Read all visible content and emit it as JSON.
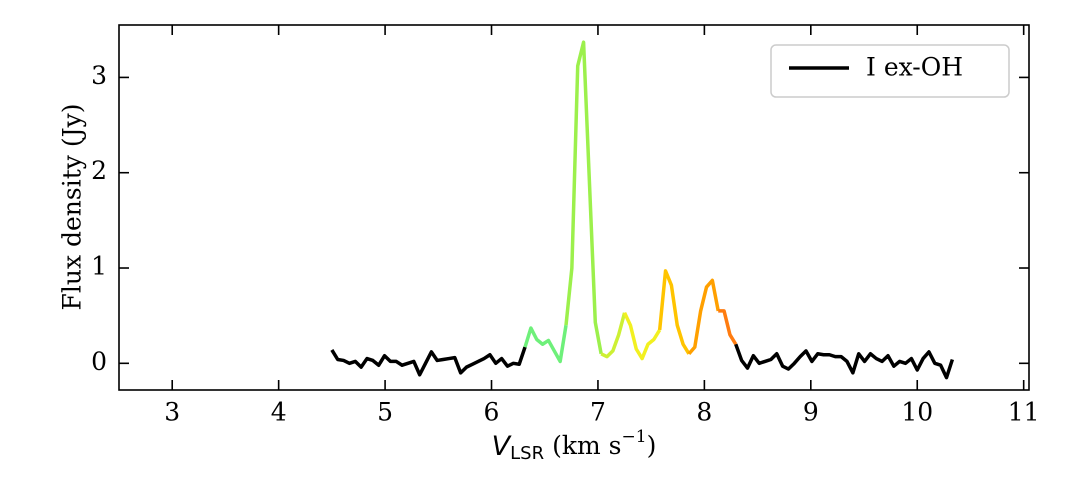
{
  "chart_data": {
    "type": "line",
    "ylabel": "Flux density (Jy)",
    "xlabel_parts": [
      "V",
      "LSR",
      "(km s",
      "−1",
      ")"
    ],
    "xlim": [
      2.5,
      11.05
    ],
    "xticks": [
      3,
      4,
      5,
      6,
      7,
      8,
      9,
      10,
      11
    ],
    "ylim": [
      -0.28,
      3.55
    ],
    "yticks": [
      0,
      1,
      2,
      3
    ],
    "legend": "upper right",
    "series": [
      {
        "name": "I ex-OH",
        "color": "#000000",
        "x": [
          4.5,
          4.555,
          4.61,
          4.665,
          4.72,
          4.775,
          4.83,
          4.885,
          4.94,
          4.995,
          5.05,
          5.105,
          5.16,
          5.215,
          5.27,
          5.325,
          5.38,
          5.435,
          5.49,
          5.545,
          5.6,
          5.655,
          5.71,
          5.765,
          5.82,
          5.875,
          5.93,
          5.985,
          6.04,
          6.095,
          6.15,
          6.205,
          6.26,
          6.315,
          6.37,
          6.425,
          6.48,
          6.535,
          6.59,
          6.645,
          6.7,
          6.755,
          6.81,
          6.865,
          6.92,
          6.975,
          7.03,
          7.085,
          7.14,
          7.195,
          7.25,
          7.305,
          7.36,
          7.415,
          7.47,
          7.525,
          7.58,
          7.635,
          7.69,
          7.745,
          7.8,
          7.855,
          7.91,
          7.965,
          8.02,
          8.075,
          8.13,
          8.185,
          8.24,
          8.295,
          8.35,
          8.405,
          8.46,
          8.515,
          8.57,
          8.625,
          8.68,
          8.735,
          8.79,
          8.845,
          8.9,
          8.955,
          9.01,
          9.065,
          9.12,
          9.175,
          9.23,
          9.285,
          9.34,
          9.395,
          9.45,
          9.505,
          9.56,
          9.615,
          9.67,
          9.725,
          9.78,
          9.835,
          9.89,
          9.945,
          10.0,
          10.055,
          10.11,
          10.165,
          10.22,
          10.275,
          10.33
        ],
        "values": [
          0.14,
          0.04,
          0.03,
          0.0,
          0.02,
          -0.04,
          0.05,
          0.03,
          -0.02,
          0.08,
          0.02,
          0.02,
          -0.02,
          0.0,
          0.02,
          -0.12,
          0.0,
          0.12,
          0.03,
          0.04,
          0.05,
          0.06,
          -0.1,
          -0.04,
          -0.01,
          0.02,
          0.05,
          0.09,
          0.0,
          0.05,
          -0.03,
          0.0,
          -0.01,
          0.17,
          0.37,
          0.25,
          0.2,
          0.24,
          0.13,
          0.02,
          0.4,
          1.0,
          3.12,
          3.37,
          1.9,
          0.43,
          0.1,
          0.07,
          0.13,
          0.3,
          0.53,
          0.4,
          0.15,
          0.05,
          0.2,
          0.25,
          0.35,
          0.97,
          0.82,
          0.4,
          0.2,
          0.1,
          0.17,
          0.55,
          0.8,
          0.87,
          0.55,
          0.55,
          0.3,
          0.2,
          0.03,
          -0.05,
          0.08,
          0.0,
          0.02,
          0.04,
          0.1,
          -0.03,
          -0.06,
          0.0,
          0.07,
          0.13,
          0.02,
          0.1,
          0.09,
          0.09,
          0.07,
          0.07,
          0.02,
          -0.1,
          0.1,
          0.02,
          0.1,
          0.05,
          0.02,
          0.08,
          -0.03,
          0.02,
          0.0,
          0.05,
          -0.07,
          0.05,
          0.12,
          0.0,
          -0.02,
          -0.15,
          0.04
        ],
        "segment_colors": [
          "#000000",
          "#000000",
          "#000000",
          "#000000",
          "#000000",
          "#000000",
          "#000000",
          "#000000",
          "#000000",
          "#000000",
          "#000000",
          "#000000",
          "#000000",
          "#000000",
          "#000000",
          "#000000",
          "#000000",
          "#000000",
          "#000000",
          "#000000",
          "#000000",
          "#000000",
          "#000000",
          "#000000",
          "#000000",
          "#000000",
          "#000000",
          "#000000",
          "#000000",
          "#000000",
          "#000000",
          "#000000",
          "#000000",
          "#6ef07a",
          "#6ef07a",
          "#6ef07a",
          "#6ef07a",
          "#6ef07a",
          "#6ef07a",
          "#6ef07a",
          "#9cf04c",
          "#9cf04c",
          "#9cf04c",
          "#9cf04c",
          "#9cf04c",
          "#9cf04c",
          "#cdf034",
          "#cdf034",
          "#cdf034",
          "#cdf034",
          "#f2f020",
          "#f2f020",
          "#f2f020",
          "#f2f020",
          "#f2f020",
          "#f2f020",
          "#ffc400",
          "#ffc400",
          "#ffc400",
          "#ffc400",
          "#ffc400",
          "#ffa000",
          "#ffa000",
          "#ffa000",
          "#ffa000",
          "#ffa000",
          "#ff7c10",
          "#ff7c10",
          "#ff7c10",
          "#000000",
          "#000000",
          "#000000",
          "#000000",
          "#000000",
          "#000000",
          "#000000",
          "#000000",
          "#000000",
          "#000000",
          "#000000",
          "#000000",
          "#000000",
          "#000000",
          "#000000",
          "#000000",
          "#000000",
          "#000000",
          "#000000",
          "#000000",
          "#000000",
          "#000000",
          "#000000",
          "#000000",
          "#000000",
          "#000000",
          "#000000",
          "#000000",
          "#000000",
          "#000000",
          "#000000",
          "#000000",
          "#000000",
          "#000000",
          "#000000",
          "#000000",
          "#000000",
          "#000000"
        ]
      }
    ]
  }
}
